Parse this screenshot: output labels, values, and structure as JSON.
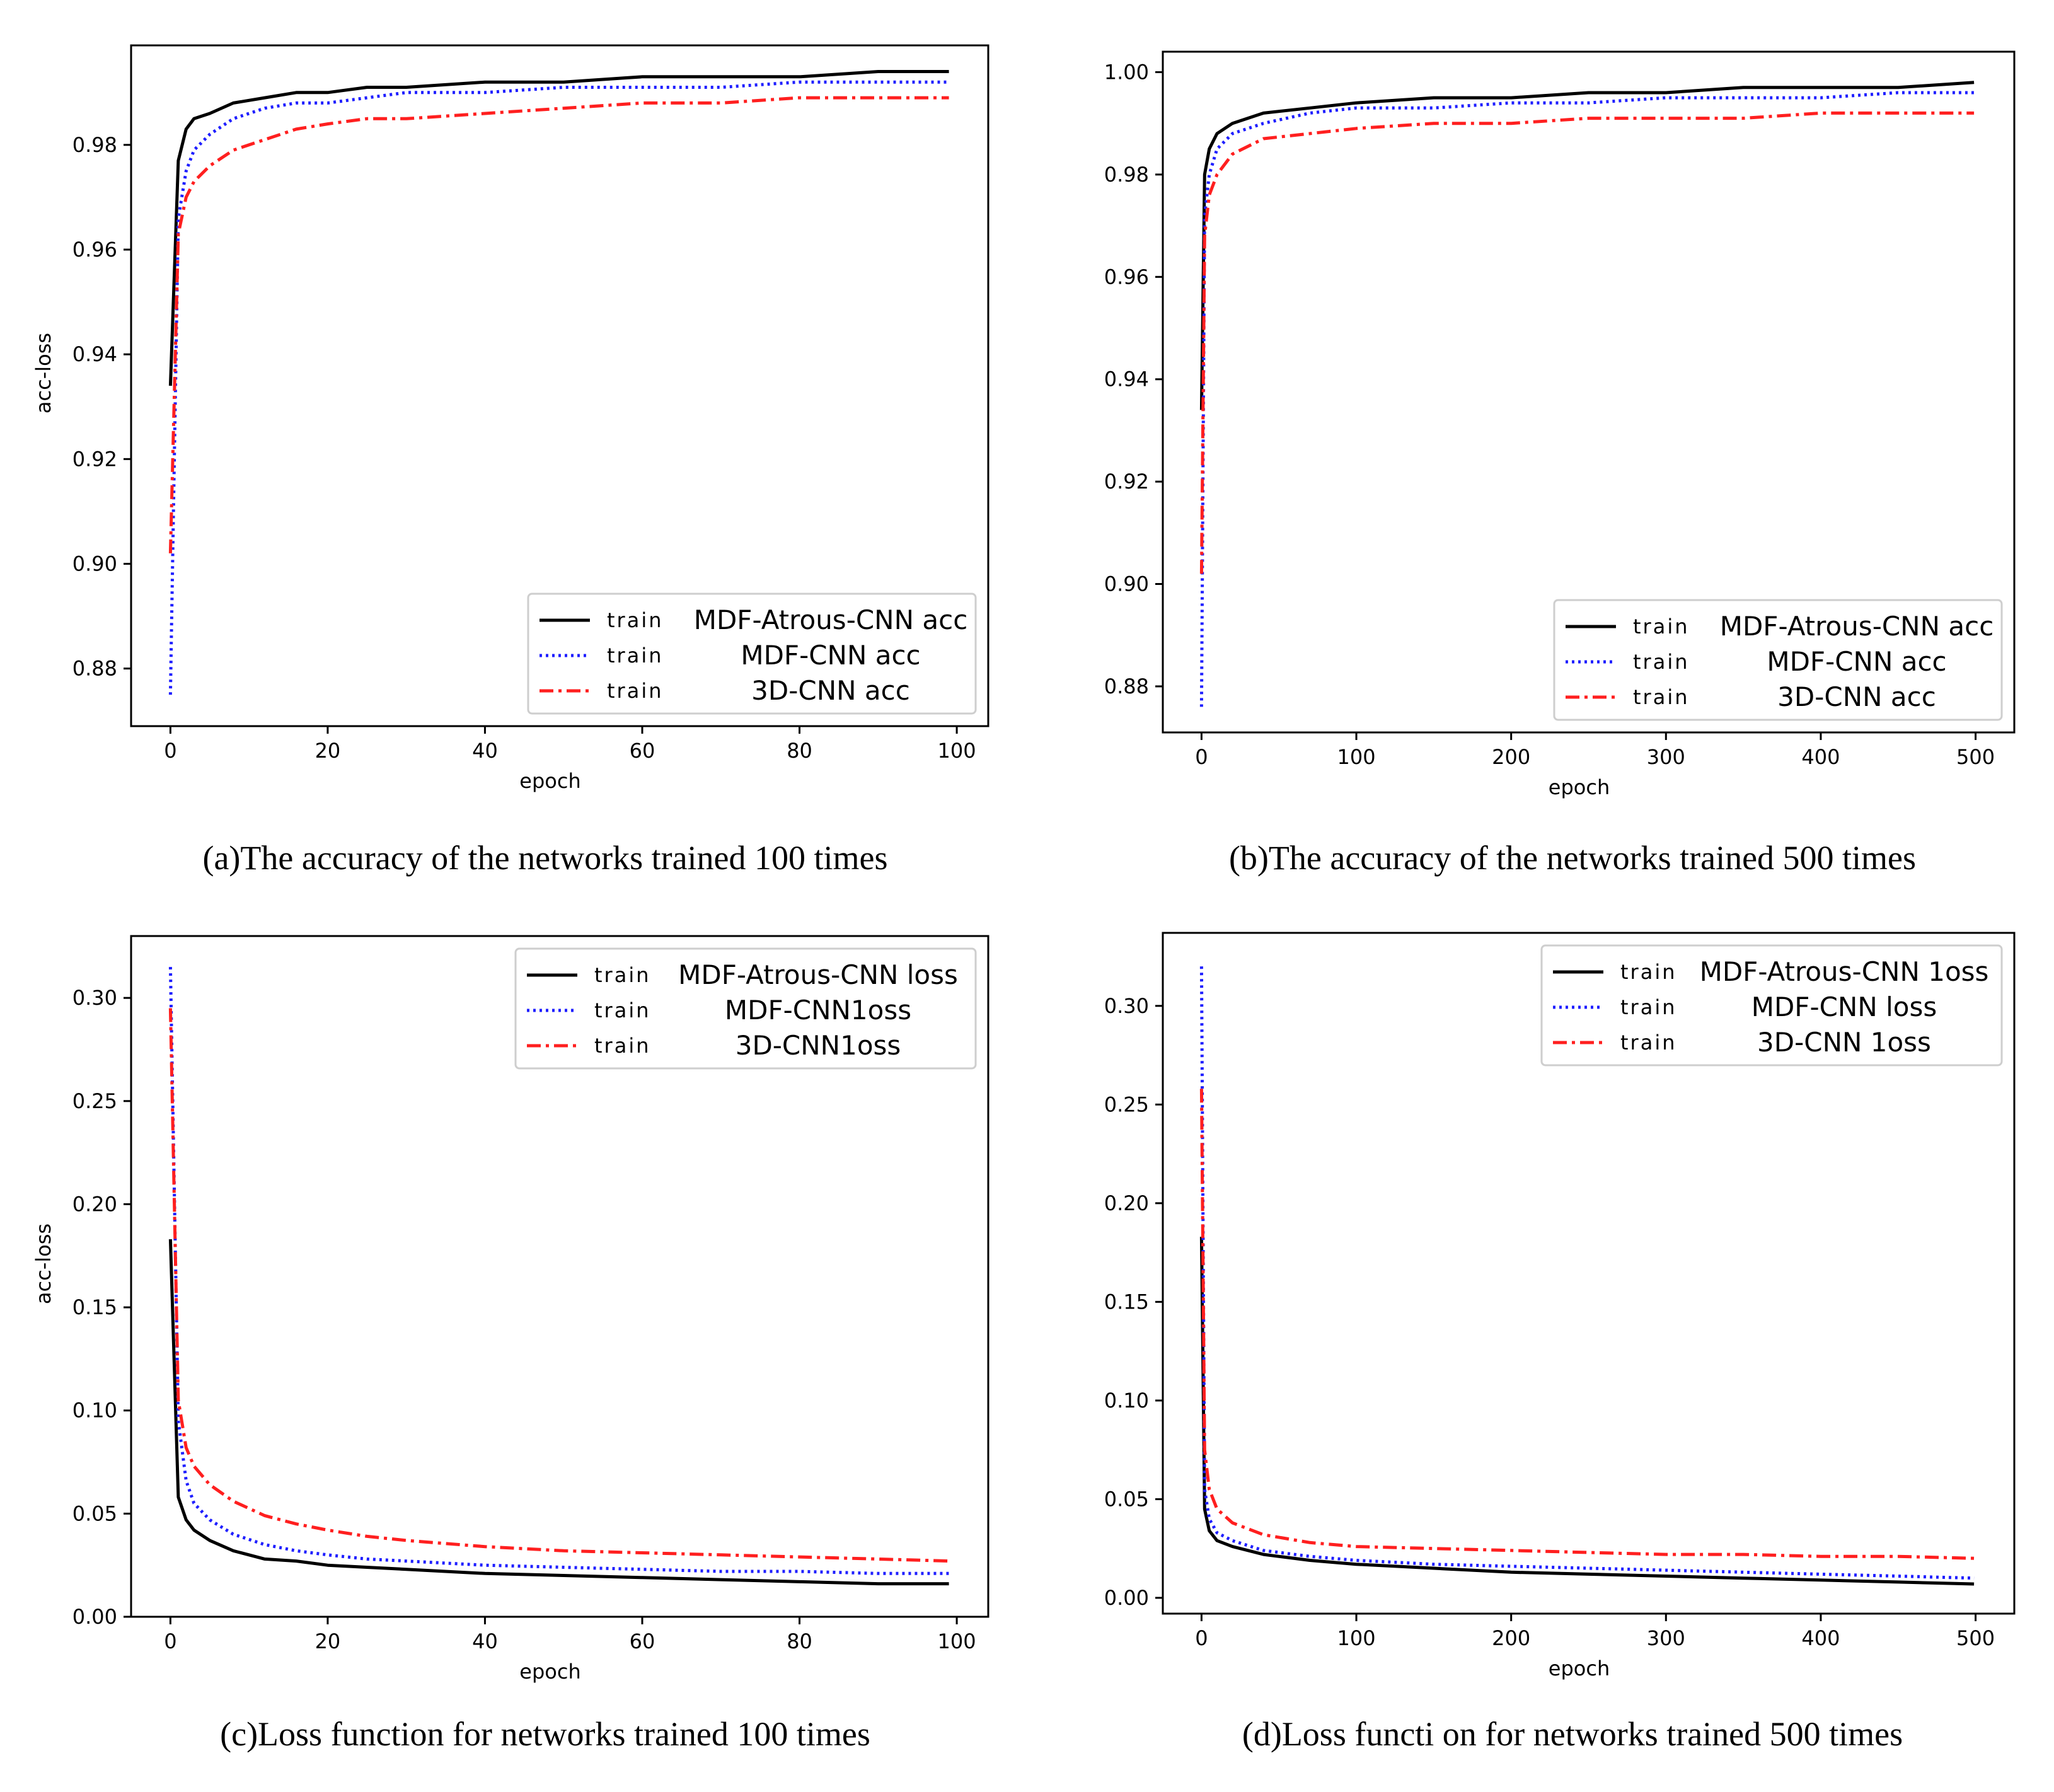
{
  "chart_data": [
    {
      "type": "line",
      "panel": "a",
      "caption": "(a)The accuracy of the networks trained 100 times",
      "xlabel": "epoch",
      "ylabel": "acc-loss",
      "xlim": [
        -5,
        104
      ],
      "ylim": [
        0.869,
        0.999
      ],
      "xticks": [
        0,
        20,
        40,
        60,
        80,
        100
      ],
      "xtick_labels": [
        "0",
        "20",
        "40",
        "60",
        "80",
        "100"
      ],
      "yticks": [
        0.88,
        0.9,
        0.92,
        0.94,
        0.96,
        0.98
      ],
      "ytick_labels": [
        "0.88",
        "0.90",
        "0.92",
        "0.94",
        "0.96",
        "0.98"
      ],
      "legend_position": "lower-right",
      "series": [
        {
          "prefix": "train",
          "name": "MDF-Atrous-CNN acc",
          "color": "#000000",
          "style": "solid",
          "x": [
            0,
            1,
            2,
            3,
            5,
            8,
            12,
            16,
            20,
            25,
            30,
            40,
            50,
            60,
            70,
            80,
            90,
            99
          ],
          "values": [
            0.934,
            0.977,
            0.983,
            0.985,
            0.986,
            0.988,
            0.989,
            0.99,
            0.99,
            0.991,
            0.991,
            0.992,
            0.992,
            0.993,
            0.993,
            0.993,
            0.994,
            0.994
          ]
        },
        {
          "prefix": "train",
          "name": "MDF-CNN acc",
          "color": "#1f1fff",
          "style": "dotted",
          "x": [
            0,
            1,
            2,
            3,
            5,
            8,
            12,
            16,
            20,
            25,
            30,
            40,
            50,
            60,
            70,
            80,
            90,
            99
          ],
          "values": [
            0.875,
            0.966,
            0.975,
            0.979,
            0.982,
            0.985,
            0.987,
            0.988,
            0.988,
            0.989,
            0.99,
            0.99,
            0.991,
            0.991,
            0.991,
            0.992,
            0.992,
            0.992
          ]
        },
        {
          "prefix": "train",
          "name": "3D-CNN acc",
          "color": "#ff1f1f",
          "style": "dashdot",
          "x": [
            0,
            1,
            2,
            3,
            5,
            8,
            12,
            16,
            20,
            25,
            30,
            40,
            50,
            60,
            70,
            80,
            90,
            99
          ],
          "values": [
            0.902,
            0.963,
            0.97,
            0.973,
            0.976,
            0.979,
            0.981,
            0.983,
            0.984,
            0.985,
            0.985,
            0.986,
            0.987,
            0.988,
            0.988,
            0.989,
            0.989,
            0.989
          ]
        }
      ]
    },
    {
      "type": "line",
      "panel": "b",
      "caption": "(b)The accuracy of the networks trained 500 times",
      "xlabel": "epoch",
      "ylabel": "",
      "xlim": [
        -25,
        525
      ],
      "ylim": [
        0.871,
        1.004
      ],
      "xticks": [
        0,
        100,
        200,
        300,
        400,
        500
      ],
      "xtick_labels": [
        "0",
        "100",
        "200",
        "300",
        "400",
        "500"
      ],
      "yticks": [
        0.88,
        0.9,
        0.92,
        0.94,
        0.96,
        0.98,
        1.0
      ],
      "ytick_labels": [
        "0.88",
        "0.90",
        "0.92",
        "0.94",
        "0.96",
        "0.98",
        "1.00"
      ],
      "legend_position": "lower-right",
      "series": [
        {
          "prefix": "train",
          "name": "MDF-Atrous-CNN acc",
          "color": "#000000",
          "style": "solid",
          "x": [
            0,
            2,
            5,
            10,
            20,
            40,
            70,
            100,
            150,
            200,
            250,
            300,
            350,
            400,
            450,
            499
          ],
          "values": [
            0.934,
            0.98,
            0.985,
            0.988,
            0.99,
            0.992,
            0.993,
            0.994,
            0.995,
            0.995,
            0.996,
            0.996,
            0.997,
            0.997,
            0.997,
            0.998
          ]
        },
        {
          "prefix": "train",
          "name": "MDF-CNN acc",
          "color": "#1f1fff",
          "style": "dotted",
          "x": [
            0,
            2,
            5,
            10,
            20,
            40,
            70,
            100,
            150,
            200,
            250,
            300,
            350,
            400,
            450,
            499
          ],
          "values": [
            0.876,
            0.972,
            0.98,
            0.985,
            0.988,
            0.99,
            0.992,
            0.993,
            0.993,
            0.994,
            0.994,
            0.995,
            0.995,
            0.995,
            0.996,
            0.996
          ]
        },
        {
          "prefix": "train",
          "name": "3D-CNN acc",
          "color": "#ff1f1f",
          "style": "dashdot",
          "x": [
            0,
            2,
            5,
            10,
            20,
            40,
            70,
            100,
            150,
            200,
            250,
            300,
            350,
            400,
            450,
            499
          ],
          "values": [
            0.902,
            0.968,
            0.976,
            0.98,
            0.984,
            0.987,
            0.988,
            0.989,
            0.99,
            0.99,
            0.991,
            0.991,
            0.991,
            0.992,
            0.992,
            0.992
          ]
        }
      ]
    },
    {
      "type": "line",
      "panel": "c",
      "caption": "(c)Loss function for networks trained 100 times",
      "xlabel": "epoch",
      "ylabel": "acc-loss",
      "xlim": [
        -5,
        104
      ],
      "ylim": [
        0,
        0.33
      ],
      "xticks": [
        0,
        20,
        40,
        60,
        80,
        100
      ],
      "xtick_labels": [
        "0",
        "20",
        "40",
        "60",
        "80",
        "100"
      ],
      "yticks": [
        0.0,
        0.05,
        0.1,
        0.15,
        0.2,
        0.25,
        0.3
      ],
      "ytick_labels": [
        "0.00",
        "0.05",
        "0.10",
        "0.15",
        "0.20",
        "0.25",
        "0.30"
      ],
      "legend_position": "upper-right",
      "series": [
        {
          "prefix": "train",
          "name": "MDF-Atrous-CNN loss",
          "color": "#000000",
          "style": "solid",
          "x": [
            0,
            1,
            2,
            3,
            5,
            8,
            12,
            16,
            20,
            25,
            30,
            40,
            50,
            60,
            70,
            80,
            90,
            99
          ],
          "values": [
            0.183,
            0.058,
            0.047,
            0.042,
            0.037,
            0.032,
            0.028,
            0.027,
            0.025,
            0.024,
            0.023,
            0.021,
            0.02,
            0.019,
            0.018,
            0.017,
            0.016,
            0.016
          ]
        },
        {
          "prefix": "train",
          "name": "MDF-CNN1oss",
          "color": "#1f1fff",
          "style": "dotted",
          "x": [
            0,
            1,
            2,
            3,
            5,
            8,
            12,
            16,
            20,
            25,
            30,
            40,
            50,
            60,
            70,
            80,
            90,
            99
          ],
          "values": [
            0.315,
            0.095,
            0.066,
            0.055,
            0.047,
            0.04,
            0.035,
            0.032,
            0.03,
            0.028,
            0.027,
            0.025,
            0.024,
            0.023,
            0.022,
            0.022,
            0.021,
            0.021
          ]
        },
        {
          "prefix": "train",
          "name": "3D-CNN1oss",
          "color": "#ff1f1f",
          "style": "dashdot",
          "x": [
            0,
            1,
            2,
            3,
            5,
            8,
            12,
            16,
            20,
            25,
            30,
            40,
            50,
            60,
            70,
            80,
            90,
            99
          ],
          "values": [
            0.295,
            0.105,
            0.082,
            0.073,
            0.064,
            0.056,
            0.049,
            0.045,
            0.042,
            0.039,
            0.037,
            0.034,
            0.032,
            0.031,
            0.03,
            0.029,
            0.028,
            0.027
          ]
        }
      ]
    },
    {
      "type": "line",
      "panel": "d",
      "caption": "(d)Loss functi on for networks trained 500 times",
      "xlabel": "epoch",
      "ylabel": "",
      "xlim": [
        -25,
        525
      ],
      "ylim": [
        -0.008,
        0.337
      ],
      "xticks": [
        0,
        100,
        200,
        300,
        400,
        500
      ],
      "xtick_labels": [
        "0",
        "100",
        "200",
        "300",
        "400",
        "500"
      ],
      "yticks": [
        0.0,
        0.05,
        0.1,
        0.15,
        0.2,
        0.25,
        0.3
      ],
      "ytick_labels": [
        "0.00",
        "0.05",
        "0.10",
        "0.15",
        "0.20",
        "0.25",
        "0.30"
      ],
      "legend_position": "upper-right",
      "series": [
        {
          "prefix": "train",
          "name": "MDF-Atrous-CNN 1oss",
          "color": "#000000",
          "style": "solid",
          "x": [
            0,
            2,
            5,
            10,
            20,
            40,
            70,
            100,
            150,
            200,
            250,
            300,
            350,
            400,
            450,
            499
          ],
          "values": [
            0.183,
            0.045,
            0.034,
            0.029,
            0.026,
            0.022,
            0.019,
            0.017,
            0.015,
            0.013,
            0.012,
            0.011,
            0.01,
            0.009,
            0.008,
            0.007
          ]
        },
        {
          "prefix": "train",
          "name": "MDF-CNN loss",
          "color": "#1f1fff",
          "style": "dotted",
          "x": [
            0,
            2,
            5,
            10,
            20,
            40,
            70,
            100,
            150,
            200,
            250,
            300,
            350,
            400,
            450,
            499
          ],
          "values": [
            0.32,
            0.055,
            0.04,
            0.033,
            0.029,
            0.024,
            0.021,
            0.019,
            0.017,
            0.016,
            0.015,
            0.014,
            0.013,
            0.012,
            0.011,
            0.01
          ]
        },
        {
          "prefix": "train",
          "name": "3D-CNN 1oss",
          "color": "#ff1f1f",
          "style": "dashdot",
          "x": [
            0,
            2,
            5,
            10,
            20,
            40,
            70,
            100,
            150,
            200,
            250,
            300,
            350,
            400,
            450,
            499
          ],
          "values": [
            0.258,
            0.075,
            0.055,
            0.045,
            0.038,
            0.032,
            0.028,
            0.026,
            0.025,
            0.024,
            0.023,
            0.022,
            0.022,
            0.021,
            0.021,
            0.02
          ]
        }
      ]
    }
  ]
}
